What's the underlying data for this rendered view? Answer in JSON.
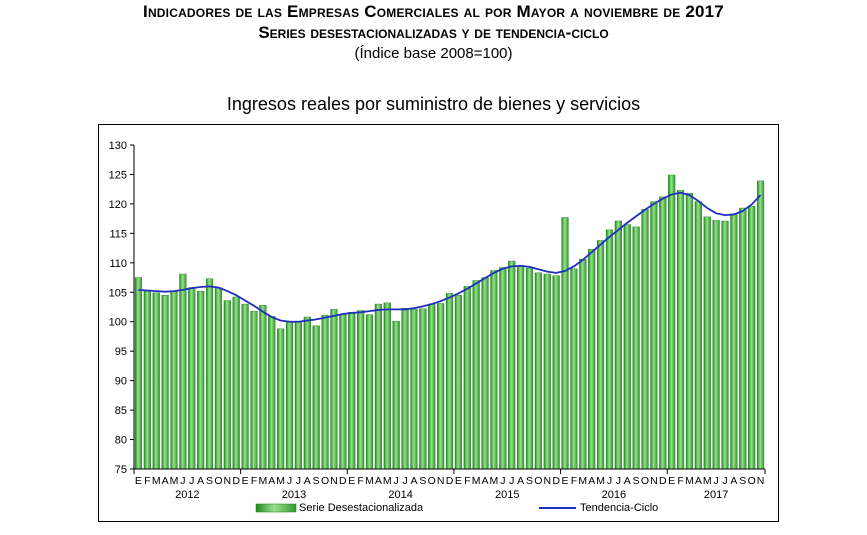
{
  "header": {
    "title_line1": "Indicadores de las Empresas Comerciales al por Mayor a noviembre de 2017",
    "title_line2": "Series desestacionalizadas y de tendencia-ciclo",
    "subtitle": "(Índice base 2008=100)"
  },
  "chart_data": {
    "type": "bar",
    "title": "Ingresos reales por suministro de bienes y servicios",
    "xlabel": "",
    "ylabel": "",
    "ylim": [
      75,
      130
    ],
    "yticks": [
      75,
      80,
      85,
      90,
      95,
      100,
      105,
      110,
      115,
      120,
      125,
      130
    ],
    "grid": false,
    "legend_position": "bottom",
    "month_labels": [
      "E",
      "F",
      "M",
      "A",
      "M",
      "J",
      "J",
      "A",
      "S",
      "O",
      "N",
      "D"
    ],
    "year_labels": [
      "2012",
      "2013",
      "2014",
      "2015",
      "2016",
      "2017"
    ],
    "categories": [
      "E 2012",
      "F 2012",
      "M 2012",
      "A 2012",
      "M 2012",
      "J 2012",
      "J 2012",
      "A 2012",
      "S 2012",
      "O 2012",
      "N 2012",
      "D 2012",
      "E 2013",
      "F 2013",
      "M 2013",
      "A 2013",
      "M 2013",
      "J 2013",
      "J 2013",
      "A 2013",
      "S 2013",
      "O 2013",
      "N 2013",
      "D 2013",
      "E 2014",
      "F 2014",
      "M 2014",
      "A 2014",
      "M 2014",
      "J 2014",
      "J 2014",
      "A 2014",
      "S 2014",
      "O 2014",
      "N 2014",
      "D 2014",
      "E 2015",
      "F 2015",
      "M 2015",
      "A 2015",
      "M 2015",
      "J 2015",
      "J 2015",
      "A 2015",
      "S 2015",
      "O 2015",
      "N 2015",
      "D 2015",
      "E 2016",
      "F 2016",
      "M 2016",
      "A 2016",
      "M 2016",
      "J 2016",
      "J 2016",
      "A 2016",
      "S 2016",
      "O 2016",
      "N 2016",
      "D 2016",
      "E 2017",
      "F 2017",
      "M 2017",
      "A 2017",
      "M 2017",
      "J 2017",
      "J 2017",
      "A 2017",
      "S 2017",
      "O 2017",
      "N 2017"
    ],
    "series": [
      {
        "name": "Serie Desestacionalizada",
        "type": "bar",
        "color": "#3aa93a",
        "values": [
          107.5,
          105.2,
          104.9,
          104.5,
          105.1,
          108.1,
          105.8,
          105.2,
          107.3,
          105.8,
          103.6,
          104.2,
          103.0,
          101.8,
          102.8,
          100.9,
          98.8,
          100.1,
          100.1,
          100.8,
          99.3,
          101.1,
          102.1,
          101.3,
          101.6,
          101.9,
          101.2,
          103.0,
          103.2,
          100.1,
          102.3,
          102.1,
          102.2,
          103.0,
          103.1,
          104.8,
          104.5,
          106.0,
          107.0,
          107.5,
          108.7,
          109.2,
          110.3,
          109.4,
          109.1,
          108.3,
          108.1,
          107.8,
          117.7,
          109.0,
          110.6,
          112.3,
          113.8,
          115.6,
          117.1,
          116.5,
          116.1,
          119.1,
          120.4,
          121.2,
          124.9,
          122.3,
          121.8,
          120.4,
          117.8,
          117.2,
          117.1,
          118.3,
          119.3,
          119.6,
          123.9
        ]
      },
      {
        "name": "Tendencia-Ciclo",
        "type": "line",
        "color": "#1f2fbf",
        "values": [
          105.4,
          105.3,
          105.2,
          105.1,
          105.2,
          105.4,
          105.7,
          105.9,
          106.0,
          105.8,
          105.2,
          104.5,
          103.6,
          102.7,
          101.7,
          100.8,
          100.2,
          100.0,
          100.0,
          100.2,
          100.4,
          100.7,
          101.0,
          101.3,
          101.5,
          101.6,
          101.8,
          102.0,
          102.1,
          102.1,
          102.1,
          102.3,
          102.6,
          103.0,
          103.5,
          104.1,
          104.8,
          105.6,
          106.5,
          107.4,
          108.3,
          109.0,
          109.4,
          109.5,
          109.3,
          108.9,
          108.5,
          108.3,
          108.6,
          109.4,
          110.5,
          111.8,
          113.1,
          114.4,
          115.6,
          116.8,
          117.9,
          119.0,
          120.0,
          120.9,
          121.6,
          121.9,
          121.5,
          120.5,
          119.3,
          118.4,
          118.1,
          118.2,
          118.8,
          119.9,
          121.5
        ]
      }
    ]
  }
}
